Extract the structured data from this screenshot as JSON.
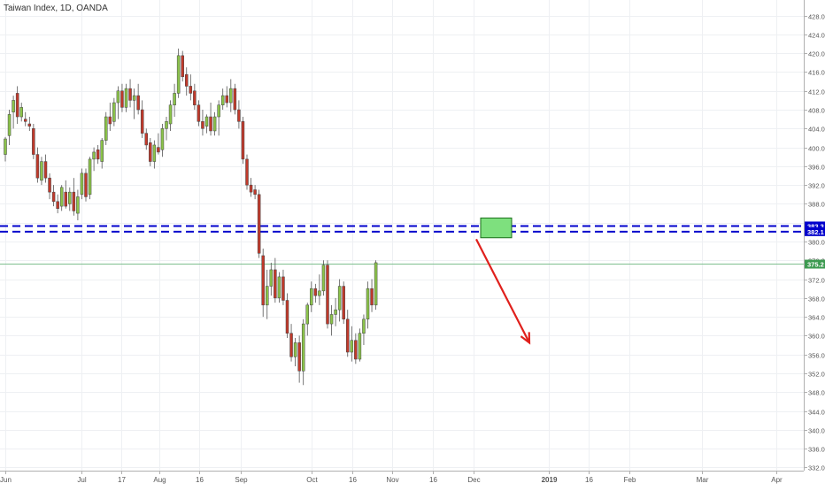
{
  "chart_data": {
    "type": "candlestick",
    "title": "Taiwan Index, 1D, OANDA",
    "x_labels": [
      "Jun",
      "Jul",
      "17",
      "Aug",
      "16",
      "Sep",
      "Oct",
      "16",
      "Nov",
      "16",
      "Dec",
      "2019",
      "16",
      "Feb",
      "Mar",
      "Apr"
    ],
    "y_ticks": [
      332.0,
      336.0,
      340.0,
      344.0,
      348.0,
      352.0,
      356.0,
      360.0,
      364.0,
      368.0,
      372.0,
      376.0,
      380.0,
      384.0,
      388.0,
      392.0,
      396.0,
      400.0,
      404.0,
      408.0,
      412.0,
      416.0,
      420.0,
      424.0,
      428.0
    ],
    "ylim": [
      330,
      430
    ],
    "grid": true,
    "colors": {
      "up": "#8bc34a",
      "down": "#c0392b",
      "level_line": "#0000cc",
      "arrow": "#e0201c",
      "zone_fill": "#7ee07e",
      "current_line": "#7fbf8f",
      "current_tag": "#3c9a50"
    },
    "horizontal_levels": [
      {
        "value": 383.3,
        "label": "383.3"
      },
      {
        "value": 382.1,
        "label": "382.1"
      }
    ],
    "current_price": {
      "value": 375.2,
      "label": "375.2"
    },
    "candles": [
      [
        398.5,
        402.2,
        397.0,
        401.8
      ],
      [
        402.5,
        408.0,
        400.5,
        407.0
      ],
      [
        407.5,
        411.0,
        404.0,
        410.0
      ],
      [
        411.5,
        413.0,
        405.0,
        406.5
      ],
      [
        406.5,
        409.5,
        405.5,
        408.5
      ],
      [
        406.0,
        407.5,
        404.5,
        405.5
      ],
      [
        405.0,
        406.5,
        403.5,
        404.5
      ],
      [
        404.0,
        405.0,
        397.5,
        398.5
      ],
      [
        398.5,
        400.0,
        392.5,
        393.5
      ],
      [
        393.0,
        398.0,
        392.0,
        397.0
      ],
      [
        397.0,
        398.5,
        392.5,
        393.5
      ],
      [
        393.5,
        394.5,
        389.0,
        390.5
      ],
      [
        390.5,
        392.0,
        387.5,
        388.5
      ],
      [
        388.5,
        390.0,
        386.0,
        387.0
      ],
      [
        387.5,
        392.0,
        386.5,
        391.5
      ],
      [
        390.5,
        393.0,
        387.0,
        387.5
      ],
      [
        388.0,
        391.5,
        386.5,
        390.5
      ],
      [
        390.5,
        393.5,
        385.5,
        386.5
      ],
      [
        386.0,
        391.0,
        384.5,
        389.5
      ],
      [
        390.0,
        395.5,
        389.0,
        394.5
      ],
      [
        394.5,
        395.5,
        388.5,
        389.5
      ],
      [
        390.0,
        398.0,
        389.0,
        397.5
      ],
      [
        397.5,
        400.0,
        395.0,
        399.0
      ],
      [
        399.5,
        400.5,
        396.5,
        397.5
      ],
      [
        397.0,
        402.0,
        395.5,
        401.5
      ],
      [
        401.5,
        407.5,
        400.5,
        406.5
      ],
      [
        406.5,
        409.5,
        403.5,
        405.0
      ],
      [
        405.5,
        410.5,
        404.5,
        409.5
      ],
      [
        409.5,
        413.0,
        406.0,
        412.0
      ],
      [
        412.0,
        413.5,
        407.5,
        408.5
      ],
      [
        408.5,
        413.5,
        407.5,
        412.5
      ],
      [
        412.5,
        414.5,
        408.5,
        410.0
      ],
      [
        410.0,
        412.5,
        406.0,
        411.0
      ],
      [
        411.0,
        413.5,
        407.0,
        408.0
      ],
      [
        408.0,
        410.0,
        402.0,
        403.0
      ],
      [
        403.0,
        404.0,
        399.5,
        400.5
      ],
      [
        401.0,
        402.0,
        396.0,
        397.0
      ],
      [
        397.0,
        401.5,
        395.5,
        400.5
      ],
      [
        400.0,
        403.0,
        398.5,
        399.0
      ],
      [
        399.5,
        405.0,
        398.0,
        404.0
      ],
      [
        404.0,
        406.5,
        401.5,
        405.5
      ],
      [
        405.0,
        410.0,
        403.5,
        409.0
      ],
      [
        409.0,
        413.5,
        406.5,
        411.5
      ],
      [
        411.5,
        421.0,
        410.5,
        419.5
      ],
      [
        419.5,
        420.5,
        414.0,
        415.0
      ],
      [
        415.5,
        417.0,
        411.0,
        413.0
      ],
      [
        413.0,
        415.5,
        410.0,
        411.5
      ],
      [
        412.0,
        413.5,
        408.0,
        409.0
      ],
      [
        409.0,
        410.0,
        404.5,
        405.5
      ],
      [
        405.5,
        408.0,
        402.5,
        404.0
      ],
      [
        404.5,
        407.0,
        403.0,
        406.5
      ],
      [
        406.5,
        409.5,
        402.5,
        403.5
      ],
      [
        403.5,
        407.5,
        402.5,
        406.5
      ],
      [
        406.5,
        410.0,
        402.5,
        409.0
      ],
      [
        409.0,
        412.5,
        408.0,
        411.0
      ],
      [
        411.0,
        413.0,
        408.5,
        409.5
      ],
      [
        409.5,
        414.5,
        407.5,
        412.5
      ],
      [
        412.5,
        413.5,
        407.0,
        408.0
      ],
      [
        408.0,
        410.0,
        404.0,
        405.5
      ],
      [
        405.5,
        406.5,
        396.5,
        397.5
      ],
      [
        397.5,
        398.5,
        391.0,
        392.0
      ],
      [
        392.0,
        393.5,
        389.5,
        390.5
      ],
      [
        391.0,
        392.0,
        389.0,
        390.0
      ],
      [
        390.0,
        391.0,
        376.5,
        377.5
      ],
      [
        377.0,
        378.5,
        364.0,
        366.5
      ],
      [
        366.5,
        374.0,
        363.5,
        370.5
      ],
      [
        370.5,
        375.5,
        368.5,
        374.0
      ],
      [
        374.0,
        376.5,
        367.0,
        368.0
      ],
      [
        368.0,
        373.5,
        367.0,
        372.5
      ],
      [
        372.5,
        374.0,
        366.5,
        367.5
      ],
      [
        367.5,
        369.0,
        359.5,
        360.5
      ],
      [
        360.5,
        362.5,
        354.5,
        355.5
      ],
      [
        355.5,
        359.5,
        353.5,
        358.5
      ],
      [
        358.5,
        360.0,
        350.0,
        352.5
      ],
      [
        352.5,
        363.5,
        349.5,
        362.5
      ],
      [
        362.5,
        367.0,
        360.0,
        366.5
      ],
      [
        366.5,
        371.5,
        365.0,
        370.0
      ],
      [
        370.0,
        371.0,
        367.0,
        368.5
      ],
      [
        368.5,
        373.0,
        366.5,
        369.5
      ],
      [
        369.5,
        376.0,
        368.5,
        375.0
      ],
      [
        375.0,
        376.0,
        361.5,
        362.5
      ],
      [
        362.5,
        366.5,
        360.0,
        364.5
      ],
      [
        364.5,
        368.0,
        362.0,
        365.5
      ],
      [
        365.5,
        372.0,
        363.0,
        370.5
      ],
      [
        370.5,
        371.5,
        362.5,
        363.5
      ],
      [
        363.5,
        365.5,
        355.5,
        356.5
      ],
      [
        356.5,
        362.0,
        354.5,
        359.0
      ],
      [
        359.0,
        360.5,
        354.0,
        355.0
      ],
      [
        355.0,
        361.5,
        354.5,
        360.5
      ],
      [
        360.5,
        364.5,
        358.0,
        363.5
      ],
      [
        363.5,
        371.5,
        361.5,
        370.0
      ],
      [
        370.0,
        372.0,
        365.0,
        366.5
      ],
      [
        366.5,
        376.0,
        365.5,
        375.5
      ]
    ]
  }
}
